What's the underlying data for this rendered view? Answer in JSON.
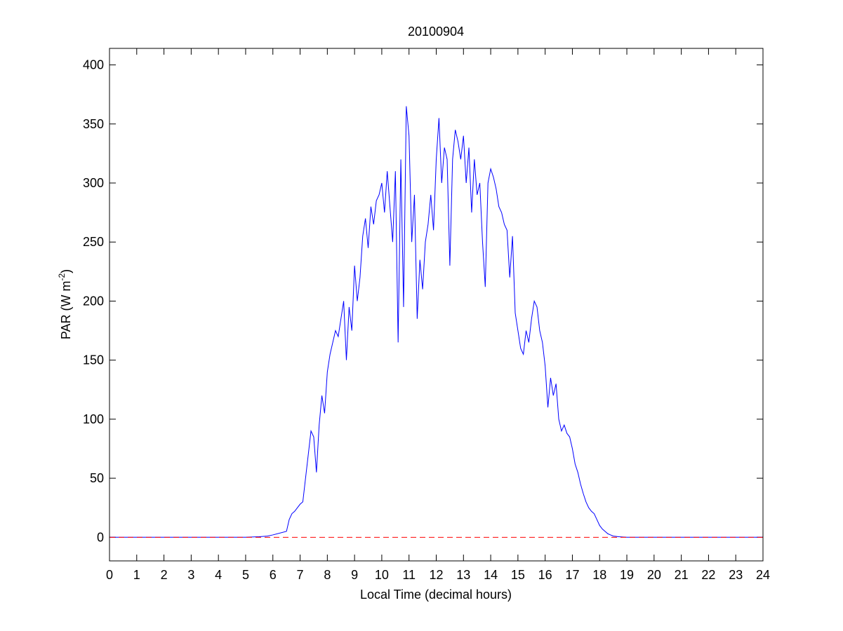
{
  "chart_data": {
    "type": "line",
    "title": "20100904",
    "xlabel": "Local Time (decimal hours)",
    "ylabel": [
      "PAR (W m",
      "-2",
      ")"
    ],
    "x": [
      0,
      5,
      5.5,
      5.8,
      6.0,
      6.5,
      6.6,
      6.7,
      6.8,
      7.0,
      7.1,
      7.2,
      7.3,
      7.4,
      7.5,
      7.6,
      7.7,
      7.8,
      7.9,
      8.0,
      8.1,
      8.2,
      8.3,
      8.4,
      8.5,
      8.6,
      8.7,
      8.8,
      8.9,
      9.0,
      9.1,
      9.2,
      9.3,
      9.4,
      9.5,
      9.6,
      9.7,
      9.8,
      9.9,
      10.0,
      10.1,
      10.2,
      10.3,
      10.4,
      10.5,
      10.6,
      10.7,
      10.8,
      10.9,
      11.0,
      11.1,
      11.2,
      11.3,
      11.4,
      11.5,
      11.6,
      11.7,
      11.8,
      11.9,
      12.0,
      12.1,
      12.2,
      12.3,
      12.4,
      12.5,
      12.6,
      12.7,
      12.8,
      12.9,
      13.0,
      13.1,
      13.2,
      13.3,
      13.4,
      13.5,
      13.6,
      13.7,
      13.8,
      13.9,
      14.0,
      14.1,
      14.2,
      14.3,
      14.4,
      14.5,
      14.6,
      14.7,
      14.8,
      14.9,
      15.0,
      15.1,
      15.2,
      15.3,
      15.4,
      15.5,
      15.6,
      15.7,
      15.8,
      15.9,
      16.0,
      16.1,
      16.2,
      16.3,
      16.4,
      16.5,
      16.6,
      16.7,
      16.8,
      16.9,
      17.0,
      17.1,
      17.2,
      17.3,
      17.4,
      17.5,
      17.6,
      17.7,
      17.8,
      17.9,
      18.0,
      18.1,
      18.2,
      18.3,
      18.4,
      18.5,
      18.7,
      19,
      24
    ],
    "series": [
      {
        "color": "#0000ff",
        "values": [
          0,
          0,
          0.5,
          1,
          2,
          5,
          15,
          20,
          22,
          28,
          30,
          50,
          70,
          90,
          85,
          55,
          95,
          120,
          105,
          140,
          155,
          165,
          175,
          170,
          185,
          200,
          150,
          195,
          175,
          230,
          200,
          220,
          255,
          270,
          245,
          280,
          265,
          285,
          290,
          300,
          275,
          310,
          280,
          250,
          310,
          165,
          320,
          195,
          365,
          340,
          250,
          290,
          185,
          235,
          210,
          250,
          265,
          290,
          260,
          320,
          355,
          300,
          330,
          320,
          230,
          320,
          345,
          335,
          320,
          340,
          300,
          330,
          275,
          320,
          290,
          300,
          250,
          212,
          300,
          312,
          305,
          295,
          280,
          275,
          265,
          260,
          220,
          255,
          190,
          175,
          160,
          155,
          175,
          165,
          185,
          200,
          195,
          175,
          165,
          145,
          110,
          135,
          120,
          130,
          100,
          90,
          95,
          88,
          85,
          75,
          62,
          55,
          45,
          37,
          30,
          25,
          22,
          20,
          15,
          10,
          7,
          5,
          3,
          2,
          1,
          0.5,
          0,
          0
        ]
      }
    ],
    "hline": {
      "value": 0,
      "color": "#ff0000"
    },
    "xlim": [
      0,
      24
    ],
    "xticks": [
      0,
      1,
      2,
      3,
      4,
      5,
      6,
      7,
      8,
      9,
      10,
      11,
      12,
      13,
      14,
      15,
      16,
      17,
      18,
      19,
      20,
      21,
      22,
      23,
      24
    ],
    "ylim": [
      -20,
      414
    ],
    "yticks": [
      0,
      50,
      100,
      150,
      200,
      250,
      300,
      350,
      400
    ]
  }
}
